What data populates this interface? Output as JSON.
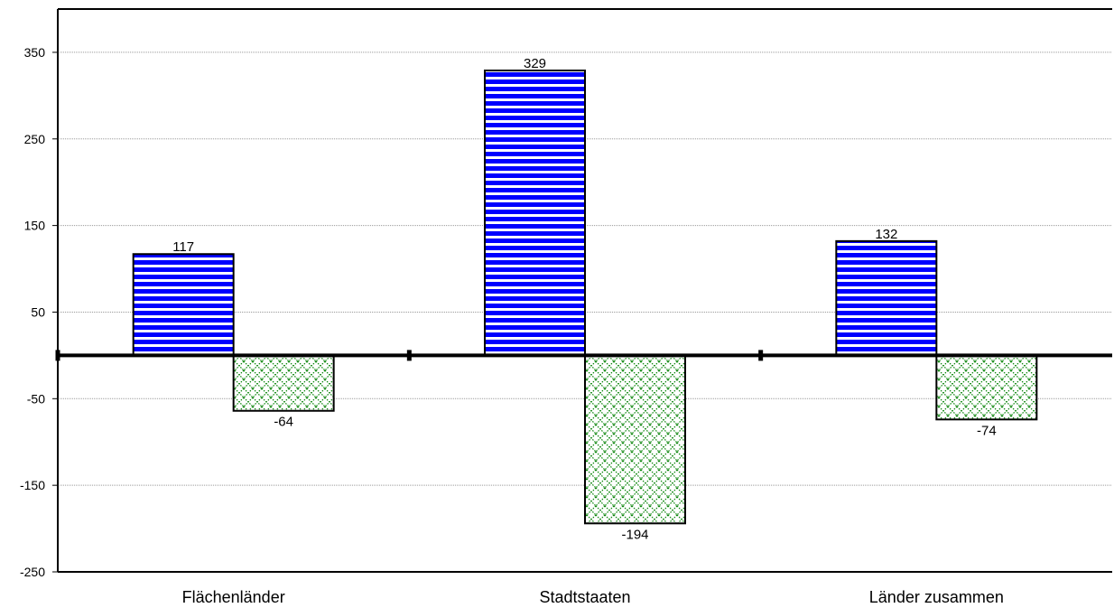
{
  "chart_data": {
    "type": "bar",
    "title": "",
    "xlabel": "",
    "ylabel": "",
    "categories": [
      "Flächenländer",
      "Stadtstaaten",
      "Länder zusammen"
    ],
    "series": [
      {
        "values": [
          117,
          329,
          132
        ],
        "data_labels": [
          "117",
          "329",
          "132"
        ],
        "color": "#0000ff",
        "pattern": "horizontal-stripes"
      },
      {
        "values": [
          -64,
          -194,
          -74
        ],
        "data_labels": [
          "-64",
          "-194",
          "-74"
        ],
        "color": "#008000",
        "pattern": "diagonal-crosshatch"
      }
    ],
    "ylim": [
      -250,
      400
    ],
    "y_ticks": [
      350,
      250,
      150,
      50,
      -50,
      -150,
      -250
    ],
    "y_tick_labels": [
      "350",
      "250",
      "150",
      "50",
      "-50",
      "-150",
      "-250"
    ],
    "grid": true,
    "legend": "none"
  }
}
